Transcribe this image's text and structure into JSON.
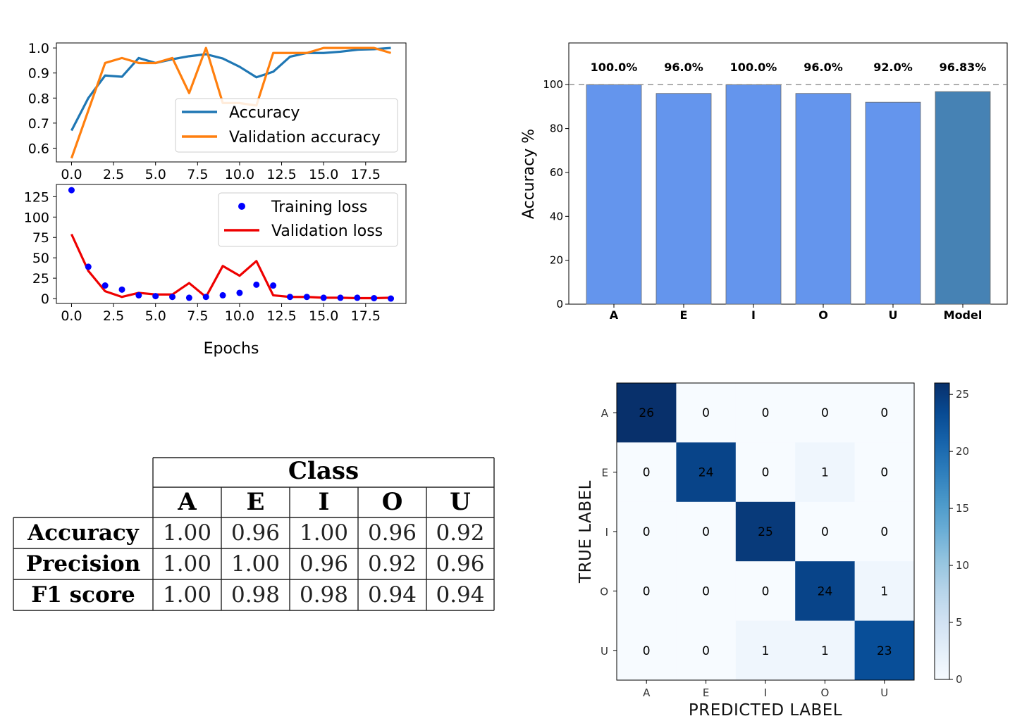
{
  "chart_data": [
    {
      "type": "line",
      "x": [
        0,
        1,
        2,
        3,
        4,
        5,
        6,
        7,
        8,
        9,
        10,
        11,
        12,
        13,
        14,
        15,
        16,
        17,
        18,
        19
      ],
      "series": [
        {
          "name": "Accuracy",
          "color": "#1f77b4",
          "values": [
            0.67,
            0.8,
            0.89,
            0.885,
            0.96,
            0.94,
            0.955,
            0.967,
            0.975,
            0.958,
            0.925,
            0.883,
            0.905,
            0.965,
            0.98,
            0.98,
            0.985,
            0.993,
            0.995,
            1.0
          ]
        },
        {
          "name": "Validation accuracy",
          "color": "#ff7f0e",
          "values": [
            0.56,
            0.75,
            0.94,
            0.96,
            0.94,
            0.94,
            0.96,
            0.82,
            1.0,
            0.78,
            0.78,
            0.77,
            0.98,
            0.98,
            0.98,
            1.0,
            1.0,
            1.0,
            1.0,
            0.98
          ]
        }
      ],
      "xlim": [
        -0.9,
        19.9
      ],
      "ylim": [
        0.545,
        1.02
      ],
      "xticks": [
        "0.0",
        "2.5",
        "5.0",
        "7.5",
        "10.0",
        "12.5",
        "15.0",
        "17.5"
      ],
      "yticks": [
        "0.6",
        "0.7",
        "0.8",
        "0.9",
        "1.0"
      ],
      "legend": "lower-right"
    },
    {
      "type": "scatter",
      "x": [
        0,
        1,
        2,
        3,
        4,
        5,
        6,
        7,
        8,
        9,
        10,
        11,
        12,
        13,
        14,
        15,
        16,
        17,
        18,
        19
      ],
      "series": [
        {
          "name": "Training loss",
          "color": "#0000ff",
          "marker": "dot",
          "values": [
            133,
            39,
            16,
            11,
            4,
            3,
            2,
            1,
            2,
            4,
            7,
            17,
            16,
            2,
            2,
            1,
            1,
            1,
            0.5,
            0
          ]
        },
        {
          "name": "Validation loss",
          "color": "#ee0000",
          "marker": "line",
          "values": [
            79,
            34,
            9,
            2,
            7,
            5,
            5,
            19,
            2,
            40,
            28,
            46,
            4,
            2,
            2,
            1,
            1,
            0.5,
            0.5,
            1
          ]
        }
      ],
      "xlim": [
        -0.9,
        19.9
      ],
      "ylim": [
        -6,
        140
      ],
      "xticks": [
        "0.0",
        "2.5",
        "5.0",
        "7.5",
        "10.0",
        "12.5",
        "15.0",
        "17.5"
      ],
      "yticks": [
        "0",
        "25",
        "50",
        "75",
        "100",
        "125"
      ],
      "xlabel": "Epochs",
      "legend": "upper-right"
    },
    {
      "type": "bar",
      "categories": [
        "A",
        "E",
        "I",
        "O",
        "U",
        "Model"
      ],
      "values": [
        100.0,
        96.0,
        100.0,
        96.0,
        92.0,
        96.83
      ],
      "value_labels": [
        "100.0%",
        "96.0%",
        "100.0%",
        "96.0%",
        "92.0%",
        "96.83%"
      ],
      "colors": [
        "#6495ed",
        "#6495ed",
        "#6495ed",
        "#6495ed",
        "#6495ed",
        "#4682b4"
      ],
      "ylabel": "Accuracy %",
      "ylim": [
        0,
        119
      ],
      "yticks": [
        "0",
        "20",
        "40",
        "60",
        "80",
        "100"
      ],
      "reference_line": 100
    },
    {
      "type": "table",
      "header_group": "Class",
      "columns": [
        "A",
        "E",
        "I",
        "O",
        "U"
      ],
      "rows": [
        {
          "label": "Accuracy",
          "values": [
            "1.00",
            "0.96",
            "1.00",
            "0.96",
            "0.92"
          ]
        },
        {
          "label": "Precision",
          "values": [
            "1.00",
            "1.00",
            "0.96",
            "0.92",
            "0.96"
          ]
        },
        {
          "label": "F1 score",
          "values": [
            "1.00",
            "0.98",
            "0.98",
            "0.94",
            "0.94"
          ]
        }
      ]
    },
    {
      "type": "heatmap",
      "xlabel": "PREDICTED LABEL",
      "ylabel": "TRUE LABEL",
      "x_categories": [
        "A",
        "E",
        "I",
        "O",
        "U"
      ],
      "y_categories": [
        "A",
        "E",
        "I",
        "O",
        "U"
      ],
      "matrix": [
        [
          26,
          0,
          0,
          0,
          0
        ],
        [
          0,
          24,
          0,
          1,
          0
        ],
        [
          0,
          0,
          25,
          0,
          0
        ],
        [
          0,
          0,
          0,
          24,
          1
        ],
        [
          0,
          0,
          1,
          1,
          23
        ]
      ],
      "colormap": "Blues",
      "vmin": 0,
      "vmax": 26,
      "colorbar_ticks": [
        "0",
        "5",
        "10",
        "15",
        "20",
        "25"
      ]
    }
  ]
}
